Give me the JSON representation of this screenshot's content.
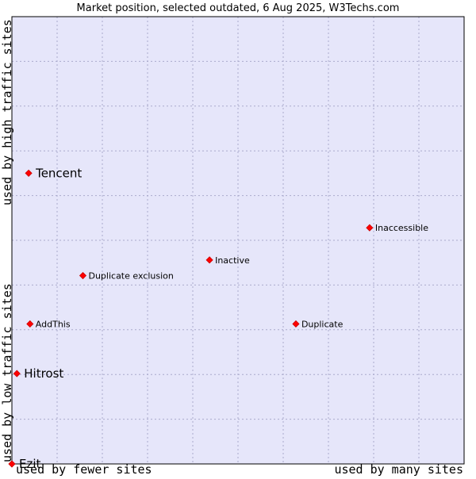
{
  "chart_data": {
    "type": "scatter",
    "title": "Market position, selected outdated, 6 Aug 2025, W3Techs.com",
    "x_axis": {
      "low_label": "used by fewer sites",
      "high_label": "used by many sites",
      "range": [
        0,
        10
      ],
      "grid_steps": 10
    },
    "y_axis": {
      "low_label": "used by low traffic sites",
      "high_label": "used by high traffic sites",
      "range": [
        0,
        10
      ],
      "grid_steps": 10
    },
    "grid": true,
    "colors": {
      "plot_background": "#e6e6fa",
      "grid": "#aaaacc",
      "border": "#000000",
      "marker": "#ff0000",
      "marker_outline": "#cc0000",
      "text": "#000000"
    },
    "points": [
      {
        "name": "Tencent",
        "x": 0.37,
        "y": 6.5,
        "emphasis": true
      },
      {
        "name": "Inaccessible",
        "x": 7.91,
        "y": 5.28,
        "emphasis": false
      },
      {
        "name": "Inactive",
        "x": 4.37,
        "y": 4.56,
        "emphasis": false
      },
      {
        "name": "Duplicate exclusion",
        "x": 1.57,
        "y": 4.21,
        "emphasis": false
      },
      {
        "name": "AddThis",
        "x": 0.4,
        "y": 3.13,
        "emphasis": false
      },
      {
        "name": "Duplicate",
        "x": 6.28,
        "y": 3.13,
        "emphasis": false
      },
      {
        "name": "Hitrost",
        "x": 0.11,
        "y": 2.02,
        "emphasis": true
      },
      {
        "name": "Ezit",
        "x": 0.0,
        "y": 0.0,
        "emphasis": true
      }
    ]
  }
}
